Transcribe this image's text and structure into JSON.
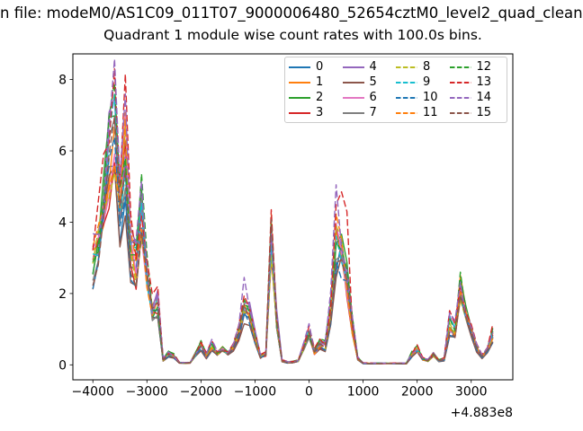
{
  "figure": {
    "suptitle": "n file: modeM0/AS1C09_011T07_9000006480_52654cztM0_level2_quad_clean",
    "background": "#ffffff",
    "spine_color": "#000000"
  },
  "chart_data": {
    "type": "line",
    "title": "Quadrant 1 module wise count rates with 100.0s bins.",
    "xlabel": "",
    "ylabel": "",
    "x_axis_offset": "+4.883e8",
    "bin_seconds": "100.0",
    "xlim": [
      -4370,
      3770
    ],
    "ylim": [
      -0.42,
      8.72
    ],
    "xticks": {
      "values": [
        -4000,
        -3000,
        -2000,
        -1000,
        0,
        1000,
        2000,
        3000
      ],
      "labels": [
        "−4000",
        "−3000",
        "−2000",
        "−1000",
        "0",
        "1000",
        "2000",
        "3000"
      ]
    },
    "yticks": {
      "values": [
        0,
        2,
        4,
        6,
        8
      ],
      "labels": [
        "0",
        "2",
        "4",
        "6",
        "8"
      ]
    },
    "legend": {
      "location": "upper right",
      "columns": 4,
      "rows": 4,
      "order": "column-major"
    },
    "jitter": 0.16,
    "x": [
      -4000,
      -3900,
      -3800,
      -3700,
      -3600,
      -3500,
      -3400,
      -3300,
      -3200,
      -3100,
      -3000,
      -2900,
      -2800,
      -2700,
      -2600,
      -2500,
      -2400,
      -2300,
      -2200,
      -2100,
      -2000,
      -1900,
      -1800,
      -1700,
      -1600,
      -1500,
      -1400,
      -1300,
      -1200,
      -1100,
      -1000,
      -900,
      -800,
      -700,
      -600,
      -500,
      -400,
      -300,
      -200,
      -100,
      0,
      100,
      200,
      300,
      400,
      500,
      600,
      700,
      800,
      900,
      1000,
      1100,
      1200,
      1300,
      1400,
      1500,
      1600,
      1700,
      1800,
      1900,
      2000,
      2100,
      2200,
      2300,
      2400,
      2500,
      2600,
      2700,
      2800,
      2900,
      3000,
      3100,
      3200,
      3300,
      3400
    ],
    "base_counts": [
      2.9,
      3.5,
      4.6,
      5.8,
      6.6,
      4.5,
      6.2,
      3.3,
      2.8,
      4.3,
      2.6,
      1.5,
      1.7,
      0.15,
      0.32,
      0.25,
      0.06,
      0.05,
      0.06,
      0.3,
      0.55,
      0.25,
      0.55,
      0.35,
      0.45,
      0.3,
      0.45,
      0.9,
      1.9,
      1.6,
      0.8,
      0.22,
      0.3,
      3.9,
      1.3,
      0.12,
      0.07,
      0.08,
      0.12,
      0.5,
      0.9,
      0.35,
      0.6,
      0.55,
      1.6,
      3.7,
      3.4,
      2.4,
      1.1,
      0.18,
      0.05,
      0.04,
      0.04,
      0.04,
      0.04,
      0.04,
      0.04,
      0.04,
      0.04,
      0.3,
      0.45,
      0.16,
      0.12,
      0.3,
      0.12,
      0.16,
      1.15,
      1.0,
      2.3,
      1.4,
      0.9,
      0.45,
      0.25,
      0.5,
      0.85
    ],
    "series": [
      {
        "label": "0",
        "color": "#1f77b4",
        "linestyle": "solid",
        "scale": 0.88,
        "overrides": {
          "45": 2.6
        }
      },
      {
        "label": "1",
        "color": "#ff7f0e",
        "linestyle": "solid",
        "scale": 1.0,
        "overrides": {}
      },
      {
        "label": "2",
        "color": "#2ca02c",
        "linestyle": "solid",
        "scale": 1.04,
        "overrides": {}
      },
      {
        "label": "3",
        "color": "#d62728",
        "linestyle": "solid",
        "scale": 0.9,
        "overrides": {}
      },
      {
        "label": "4",
        "color": "#9467bd",
        "linestyle": "solid",
        "scale": 1.06,
        "overrides": {}
      },
      {
        "label": "5",
        "color": "#8c564b",
        "linestyle": "solid",
        "scale": 0.8,
        "overrides": {
          "28": 1.15,
          "45": 2.45
        }
      },
      {
        "label": "6",
        "color": "#e377c2",
        "linestyle": "solid",
        "scale": 0.97,
        "overrides": {}
      },
      {
        "label": "7",
        "color": "#7f7f7f",
        "linestyle": "solid",
        "scale": 0.95,
        "overrides": {}
      },
      {
        "label": "8",
        "color": "#bcbd22",
        "linestyle": "dashed",
        "scale": 0.93,
        "overrides": {}
      },
      {
        "label": "9",
        "color": "#17becf",
        "linestyle": "dashed",
        "scale": 1.01,
        "overrides": {}
      },
      {
        "label": "10",
        "color": "#1f77b4",
        "linestyle": "dashed",
        "scale": 0.86,
        "overrides": {
          "46": 2.4
        }
      },
      {
        "label": "11",
        "color": "#ff7f0e",
        "linestyle": "dashed",
        "scale": 0.99,
        "overrides": {}
      },
      {
        "label": "12",
        "color": "#2ca02c",
        "linestyle": "dashed",
        "scale": 1.08,
        "overrides": {
          "4": 7.9,
          "68": 2.6,
          "74": 1.05
        }
      },
      {
        "label": "13",
        "color": "#d62728",
        "linestyle": "dashed",
        "scale": 1.15,
        "overrides": {
          "4": 8.3,
          "12": 2.2,
          "33": 4.35,
          "46": 4.85,
          "47": 4.3,
          "74": 1.15
        }
      },
      {
        "label": "14",
        "color": "#9467bd",
        "linestyle": "dashed",
        "scale": 1.12,
        "overrides": {
          "6": 7.6,
          "9": 5.15,
          "28": 2.45,
          "45": 5.05
        }
      },
      {
        "label": "15",
        "color": "#8c564b",
        "linestyle": "dashed",
        "scale": 0.91,
        "overrides": {}
      }
    ]
  }
}
